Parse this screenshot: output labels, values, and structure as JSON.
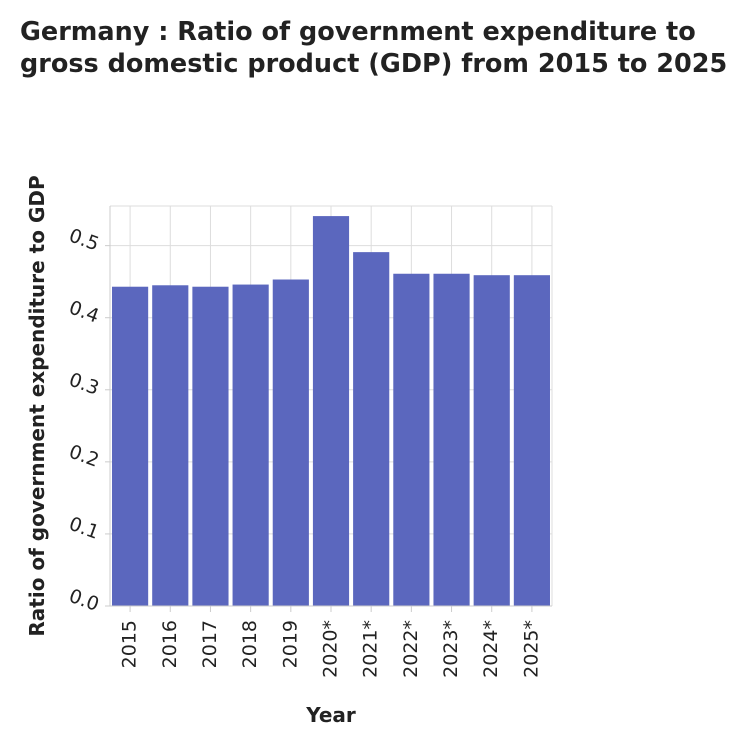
{
  "chart_data": {
    "type": "bar",
    "title": "Germany : Ratio of government expenditure to gross domestic product (GDP) from 2015 to 2025",
    "xlabel": "Year",
    "ylabel": "Ratio of government expenditure to GDP",
    "categories": [
      "2015",
      "2016",
      "2017",
      "2018",
      "2019",
      "2020*",
      "2021*",
      "2022*",
      "2023*",
      "2024*",
      "2025*"
    ],
    "values": [
      0.443,
      0.445,
      0.443,
      0.446,
      0.453,
      0.541,
      0.491,
      0.461,
      0.461,
      0.459,
      0.459
    ],
    "yticks": [
      "0.0",
      "0.1",
      "0.2",
      "0.3",
      "0.4",
      "0.5"
    ],
    "ylim": [
      0,
      0.555
    ],
    "grid": true,
    "bar_color": "#5b67be",
    "grid_color": "#dddddd",
    "axis_color": "#cccccc",
    "text_color": "#222222"
  }
}
